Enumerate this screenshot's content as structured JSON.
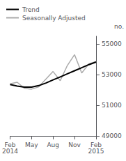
{
  "chart_data": {
    "type": "line",
    "categories": [
      "Feb\n2014",
      null,
      null,
      "May",
      null,
      null,
      "Aug",
      null,
      null,
      "Nov",
      null,
      null,
      "Feb\n2015"
    ],
    "series": [
      {
        "name": "Seasonally Adjusted",
        "color": "#aaaaaa",
        "values": [
          52400,
          52500,
          52100,
          52050,
          52200,
          52700,
          53200,
          52600,
          53600,
          54300,
          53100,
          53700,
          53850
        ]
      },
      {
        "name": "Trend",
        "color": "#000000",
        "values": [
          52350,
          52250,
          52180,
          52180,
          52280,
          52450,
          52650,
          52850,
          53050,
          53250,
          53450,
          53650,
          53820
        ]
      }
    ],
    "ylabel": "no.",
    "ylim": [
      49000,
      55500
    ],
    "yticks": [
      49000,
      51000,
      53000,
      55000
    ],
    "grid": false,
    "legend": "upper left"
  }
}
